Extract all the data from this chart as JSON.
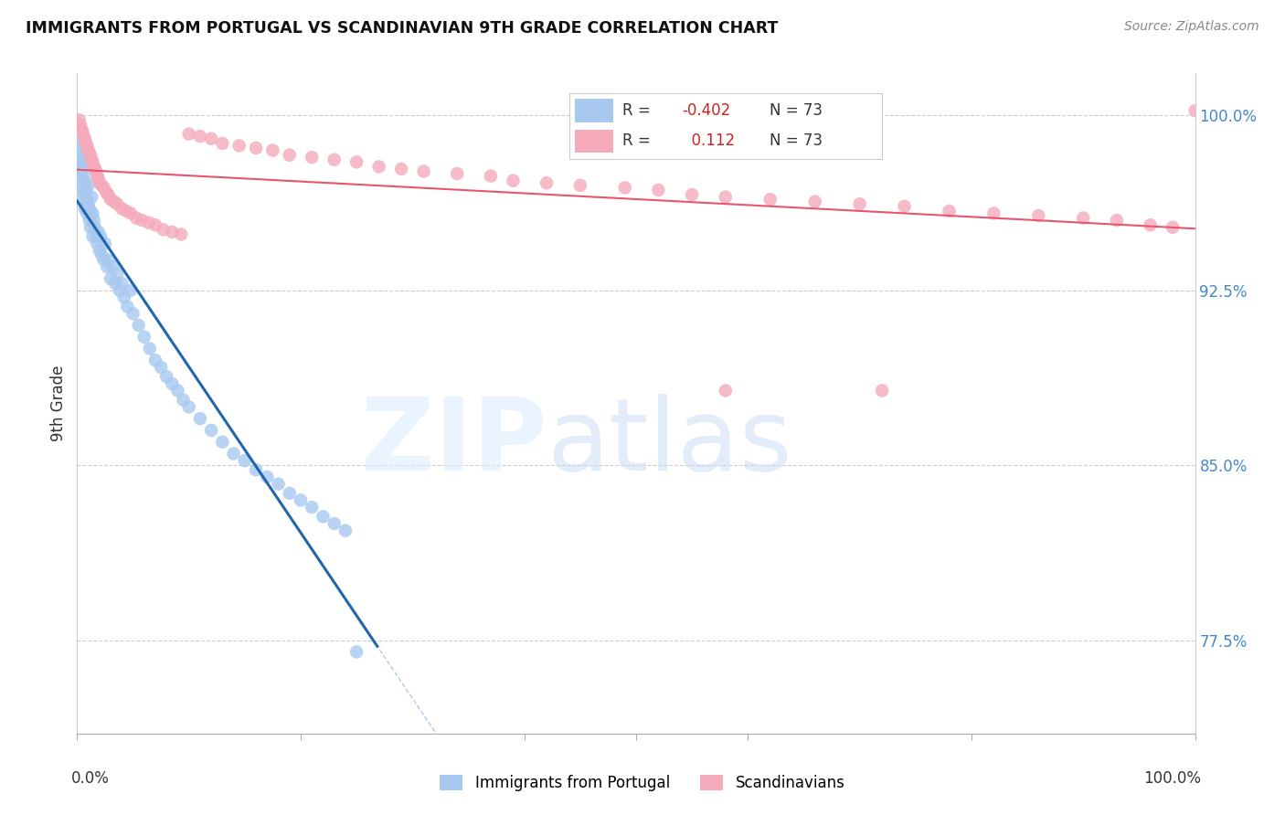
{
  "title": "IMMIGRANTS FROM PORTUGAL VS SCANDINAVIAN 9TH GRADE CORRELATION CHART",
  "source": "Source: ZipAtlas.com",
  "ylabel": "9th Grade",
  "ytick_labels": [
    "77.5%",
    "85.0%",
    "92.5%",
    "100.0%"
  ],
  "ytick_values": [
    0.775,
    0.85,
    0.925,
    1.0
  ],
  "xlim": [
    0.0,
    1.0
  ],
  "ylim": [
    0.735,
    1.018
  ],
  "blue_color": "#A8C8F0",
  "pink_color": "#F4AABB",
  "blue_line_color": "#2166AC",
  "pink_line_color": "#E8566E",
  "blue_R": -0.402,
  "blue_N": 73,
  "pink_R": 0.112,
  "pink_N": 73,
  "legend_label_blue": "Immigrants from Portugal",
  "legend_label_pink": "Scandinavians",
  "blue_scatter_x": [
    0.001,
    0.002,
    0.002,
    0.003,
    0.003,
    0.004,
    0.004,
    0.005,
    0.005,
    0.006,
    0.006,
    0.007,
    0.007,
    0.008,
    0.008,
    0.009,
    0.009,
    0.01,
    0.01,
    0.011,
    0.011,
    0.012,
    0.012,
    0.013,
    0.014,
    0.014,
    0.015,
    0.016,
    0.017,
    0.018,
    0.019,
    0.02,
    0.021,
    0.022,
    0.024,
    0.025,
    0.027,
    0.028,
    0.03,
    0.032,
    0.034,
    0.036,
    0.038,
    0.04,
    0.042,
    0.045,
    0.048,
    0.05,
    0.055,
    0.06,
    0.065,
    0.07,
    0.075,
    0.08,
    0.085,
    0.09,
    0.095,
    0.1,
    0.11,
    0.12,
    0.13,
    0.14,
    0.15,
    0.16,
    0.17,
    0.18,
    0.19,
    0.2,
    0.21,
    0.22,
    0.23,
    0.24,
    0.25
  ],
  "blue_scatter_y": [
    0.985,
    0.988,
    0.978,
    0.982,
    0.975,
    0.98,
    0.97,
    0.978,
    0.965,
    0.975,
    0.968,
    0.972,
    0.96,
    0.968,
    0.963,
    0.965,
    0.958,
    0.962,
    0.97,
    0.96,
    0.955,
    0.958,
    0.952,
    0.965,
    0.958,
    0.948,
    0.955,
    0.952,
    0.948,
    0.945,
    0.95,
    0.942,
    0.948,
    0.94,
    0.938,
    0.945,
    0.935,
    0.938,
    0.93,
    0.935,
    0.928,
    0.932,
    0.925,
    0.928,
    0.922,
    0.918,
    0.925,
    0.915,
    0.91,
    0.905,
    0.9,
    0.895,
    0.892,
    0.888,
    0.885,
    0.882,
    0.878,
    0.875,
    0.87,
    0.865,
    0.86,
    0.855,
    0.852,
    0.848,
    0.845,
    0.842,
    0.838,
    0.835,
    0.832,
    0.828,
    0.825,
    0.822,
    0.77
  ],
  "pink_scatter_x": [
    0.002,
    0.003,
    0.004,
    0.005,
    0.006,
    0.007,
    0.008,
    0.009,
    0.01,
    0.011,
    0.012,
    0.013,
    0.014,
    0.015,
    0.016,
    0.017,
    0.018,
    0.019,
    0.02,
    0.022,
    0.024,
    0.026,
    0.028,
    0.03,
    0.033,
    0.036,
    0.04,
    0.044,
    0.048,
    0.053,
    0.058,
    0.064,
    0.07,
    0.077,
    0.085,
    0.093,
    0.1,
    0.11,
    0.12,
    0.13,
    0.145,
    0.16,
    0.175,
    0.19,
    0.21,
    0.23,
    0.25,
    0.27,
    0.29,
    0.31,
    0.34,
    0.37,
    0.39,
    0.42,
    0.45,
    0.49,
    0.52,
    0.55,
    0.58,
    0.62,
    0.66,
    0.7,
    0.74,
    0.78,
    0.82,
    0.86,
    0.9,
    0.93,
    0.96,
    0.98,
    0.58,
    0.72,
    1.0
  ],
  "pink_scatter_y": [
    0.998,
    0.996,
    0.994,
    0.993,
    0.991,
    0.99,
    0.988,
    0.987,
    0.985,
    0.984,
    0.983,
    0.981,
    0.98,
    0.978,
    0.977,
    0.976,
    0.974,
    0.973,
    0.971,
    0.97,
    0.969,
    0.967,
    0.966,
    0.964,
    0.963,
    0.962,
    0.96,
    0.959,
    0.958,
    0.956,
    0.955,
    0.954,
    0.953,
    0.951,
    0.95,
    0.949,
    0.992,
    0.991,
    0.99,
    0.988,
    0.987,
    0.986,
    0.985,
    0.983,
    0.982,
    0.981,
    0.98,
    0.978,
    0.977,
    0.976,
    0.975,
    0.974,
    0.972,
    0.971,
    0.97,
    0.969,
    0.968,
    0.966,
    0.965,
    0.964,
    0.963,
    0.962,
    0.961,
    0.959,
    0.958,
    0.957,
    0.956,
    0.955,
    0.953,
    0.952,
    0.882,
    0.882,
    1.002
  ]
}
